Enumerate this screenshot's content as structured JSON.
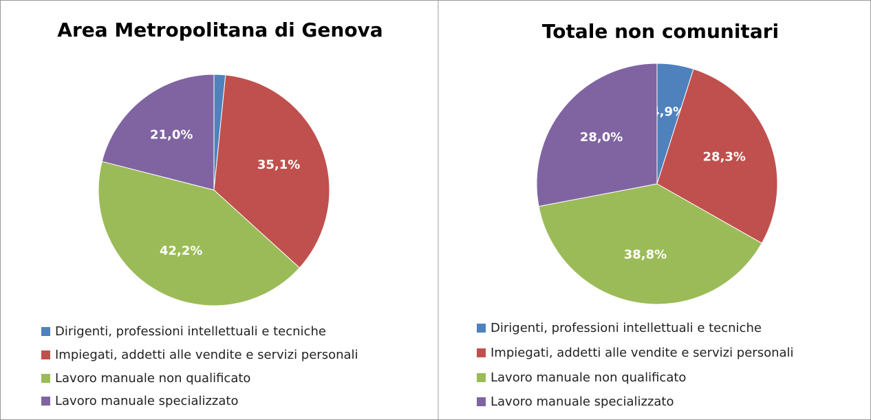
{
  "chart_data": [
    {
      "type": "pie",
      "title": "Area Metropolitana di Genova",
      "categories": [
        "Dirigenti, professioni intellettuali e tecniche",
        "Impiegati, addetti alle vendite e servizi personali",
        "Lavoro manuale non qualificato",
        "Lavoro manuale specializzato"
      ],
      "values": [
        1.6,
        35.1,
        42.2,
        21.0
      ],
      "value_labels": [
        "1,6%",
        "35,1%",
        "42,2%",
        "21,0%"
      ],
      "colors": [
        "#4f81bd",
        "#c0504d",
        "#9bbb59",
        "#8064a2"
      ]
    },
    {
      "type": "pie",
      "title": "Totale non comunitari",
      "categories": [
        "Dirigenti, professioni intellettuali e tecniche",
        "Impiegati, addetti alle vendite e servizi personali",
        "Lavoro manuale non qualificato",
        "Lavoro manuale specializzato"
      ],
      "values": [
        4.9,
        28.3,
        38.8,
        28.0
      ],
      "value_labels": [
        "4,9%",
        "28,3%",
        "38,8%",
        "28,0%"
      ],
      "colors": [
        "#4f81bd",
        "#c0504d",
        "#9bbb59",
        "#8064a2"
      ]
    }
  ]
}
